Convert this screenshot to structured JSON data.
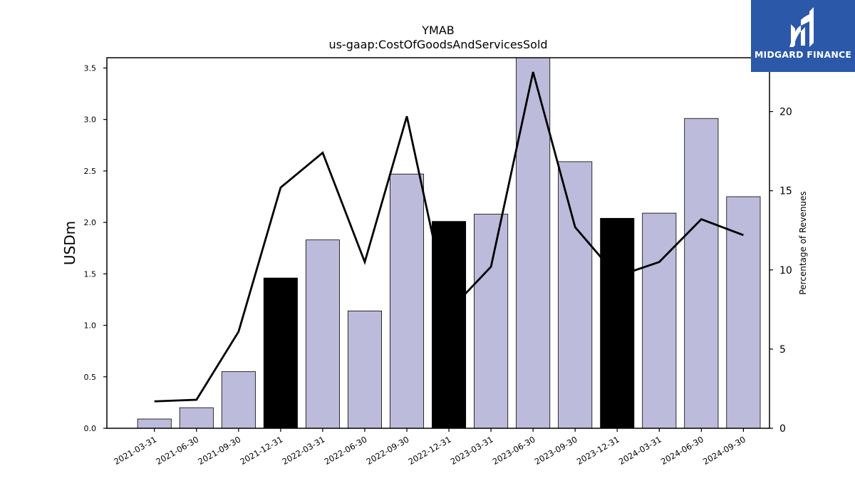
{
  "chart_data": {
    "type": "bar",
    "title": "YMAB",
    "subtitle": "us-gaap:CostOfGoodsAndServicesSold",
    "ylabel": "USDm",
    "y2label": "Percentage of Revenues",
    "ylim": [
      0,
      3.6
    ],
    "y2lim": [
      0,
      23.4
    ],
    "yticks": [
      "0.0",
      "0.5",
      "1.0",
      "1.5",
      "2.0",
      "2.5",
      "3.0",
      "3.5"
    ],
    "y2ticks": [
      "0",
      "5",
      "10",
      "15",
      "20"
    ],
    "categories": [
      "2021-03-31",
      "2021-06-30",
      "2021-09-30",
      "2021-12-31",
      "2022-03-31",
      "2022-06-30",
      "2022-09-30",
      "2022-12-31",
      "2023-03-31",
      "2023-06-30",
      "2023-09-30",
      "2023-12-31",
      "2024-03-31",
      "2024-06-30",
      "2024-09-30"
    ],
    "series": [
      {
        "type": "bar",
        "axis": "left",
        "values": [
          0.09,
          0.2,
          0.55,
          1.46,
          1.83,
          1.14,
          2.47,
          2.01,
          2.08,
          3.6,
          2.59,
          2.04,
          2.09,
          3.01,
          2.25
        ]
      },
      {
        "type": "line",
        "axis": "right",
        "values": [
          1.7,
          1.8,
          6.1,
          15.2,
          17.4,
          10.5,
          19.7,
          7.4,
          10.2,
          22.5,
          12.7,
          9.6,
          10.5,
          13.2,
          12.2
        ]
      }
    ],
    "bar_colors": [
      "#bdbbdb",
      "#bdbbdb",
      "#bdbbdb",
      "#000000",
      "#bdbbdb",
      "#bdbbdb",
      "#bdbbdb",
      "#000000",
      "#bdbbdb",
      "#bdbbdb",
      "#bdbbdb",
      "#000000",
      "#bdbbdb",
      "#bdbbdb",
      "#bdbbdb"
    ],
    "line_color": "#000000",
    "grid": false,
    "legend": "none"
  },
  "logo": {
    "text": "MIDGARD FINANCE",
    "background": "#2b58a8"
  }
}
